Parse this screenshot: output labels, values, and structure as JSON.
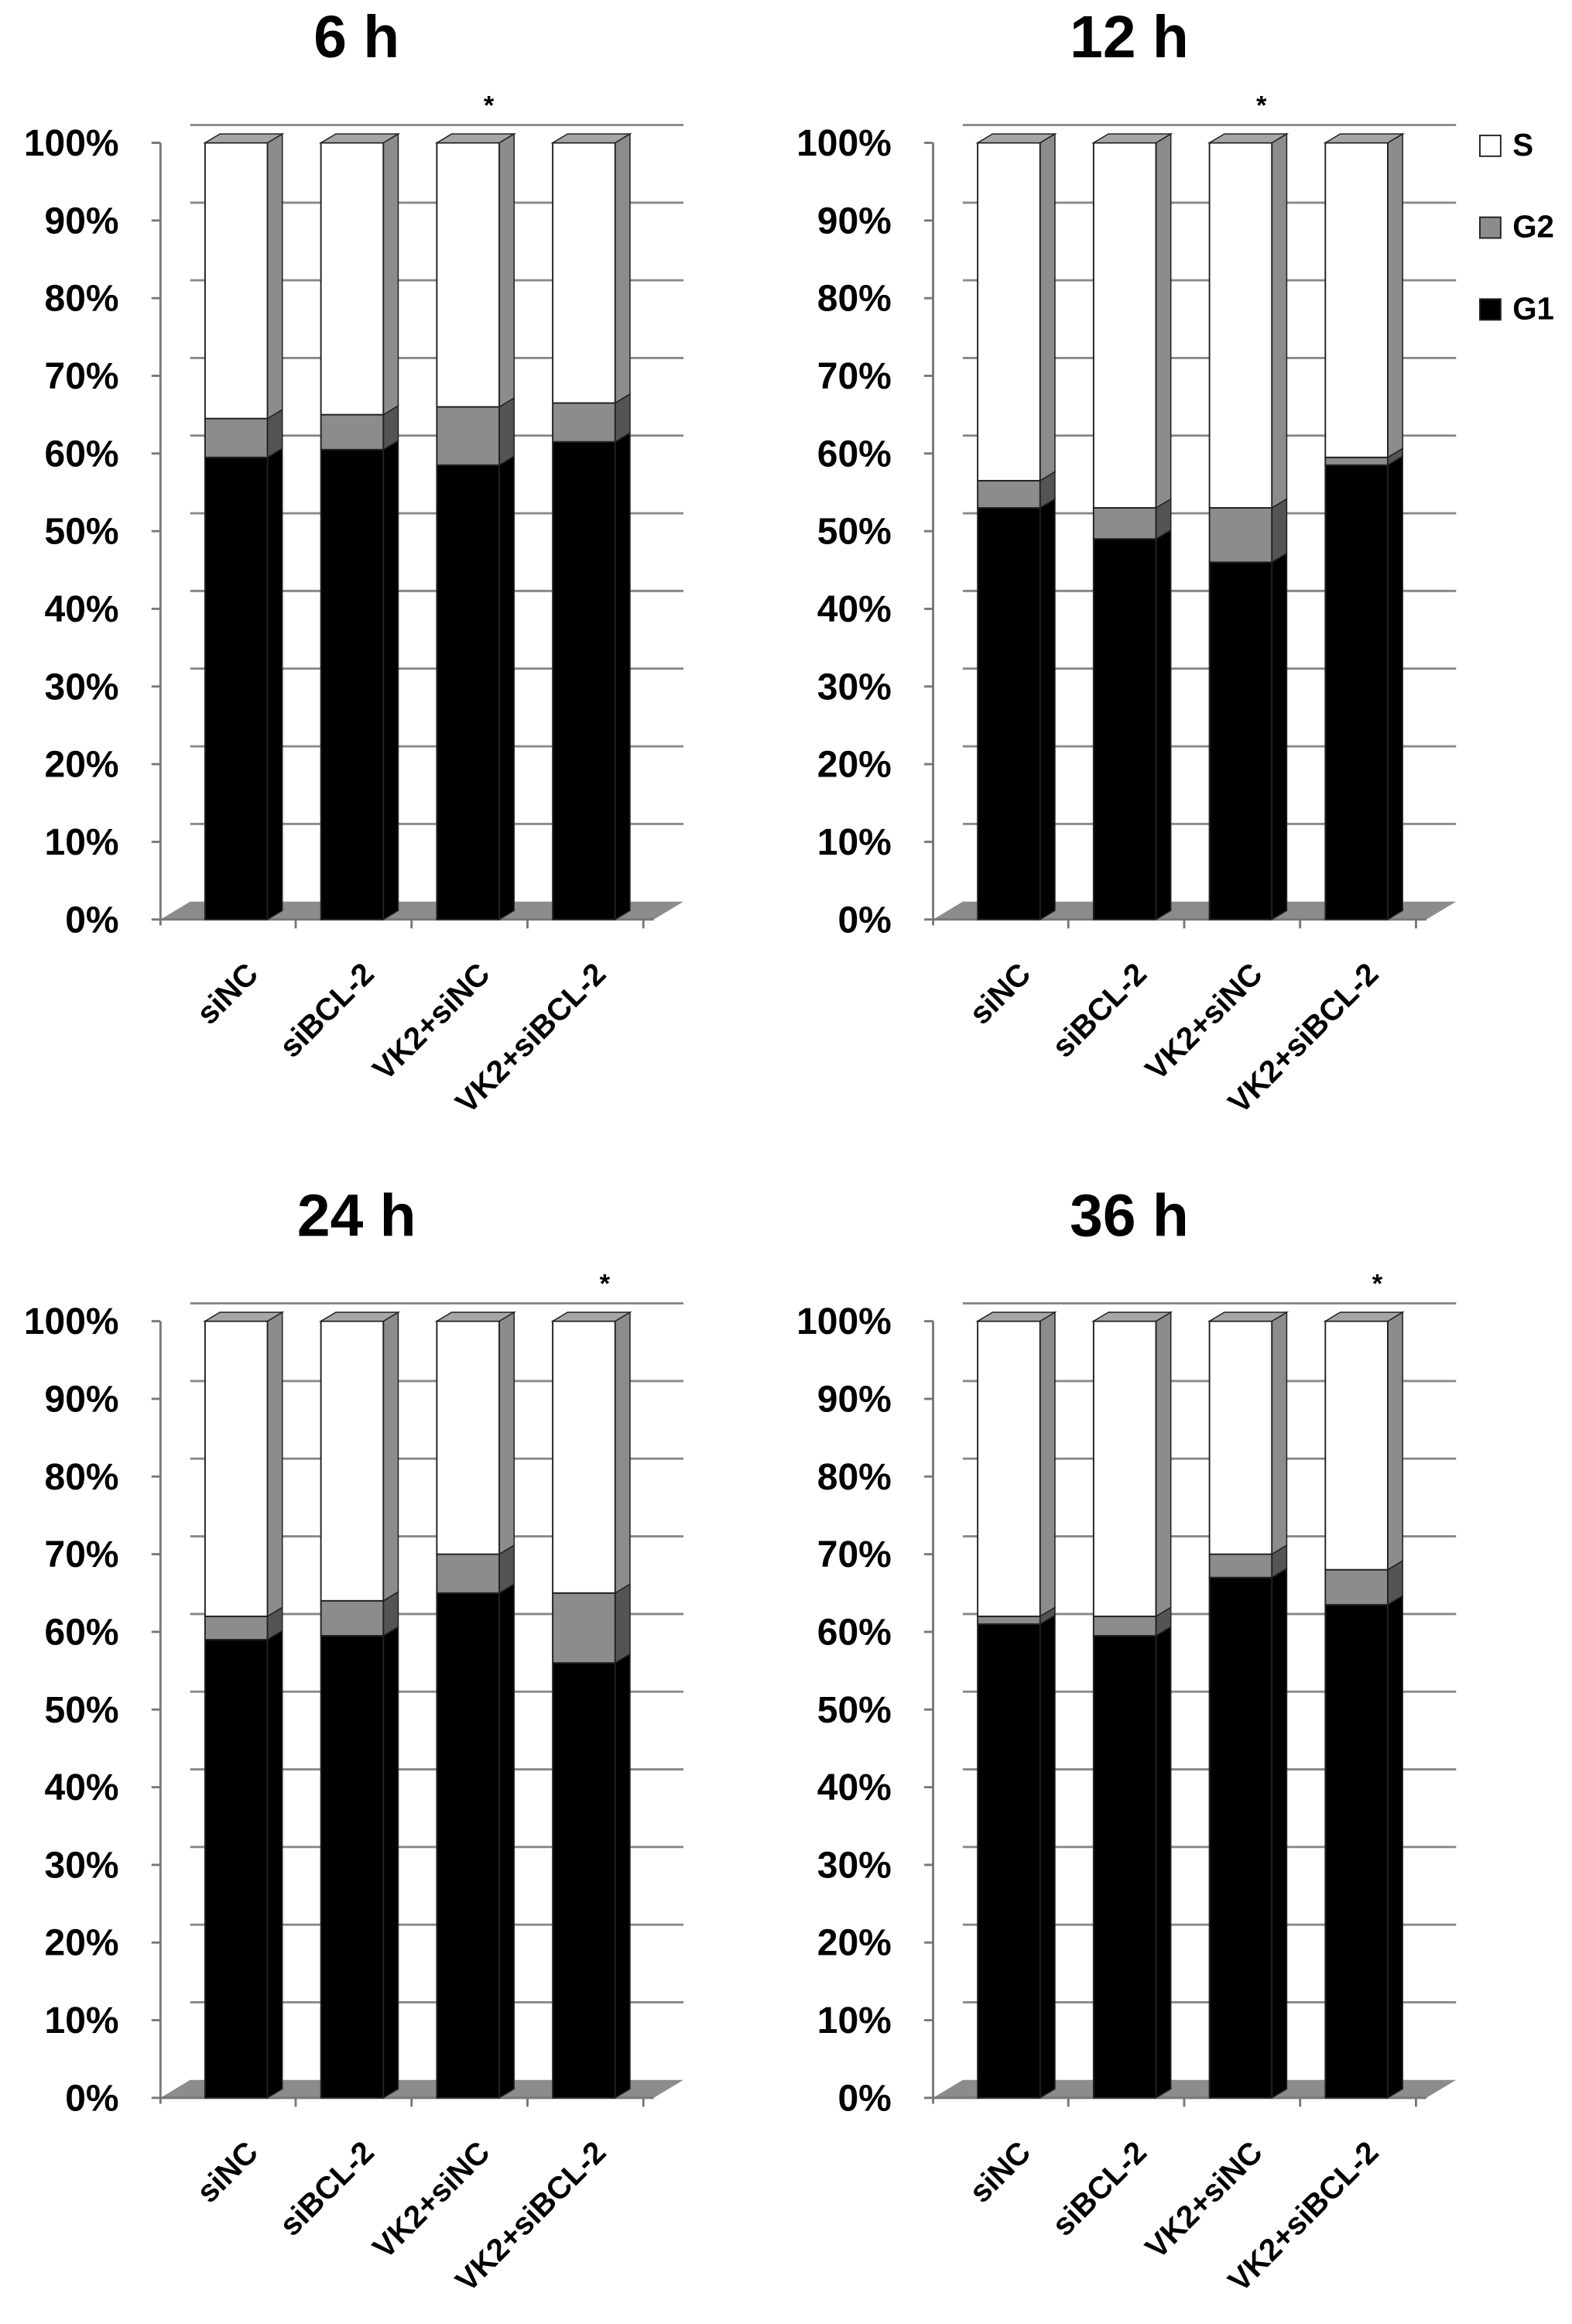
{
  "chart_data": [
    {
      "type": "bar",
      "stacked": true,
      "title": "6 h",
      "categories": [
        "siNC",
        "siBCL-2",
        "VK2+siNC",
        "VK2+siBCL-2"
      ],
      "series": [
        {
          "name": "S",
          "color": "#ffffff",
          "values": [
            35.5,
            35,
            34,
            33.5
          ]
        },
        {
          "name": "G2",
          "color": "#8c8c8c",
          "values": [
            5,
            4.5,
            7.5,
            5
          ]
        },
        {
          "name": "G1",
          "color": "#000000",
          "values": [
            59.5,
            60.5,
            58.5,
            61.5
          ]
        }
      ],
      "ylim": [
        0,
        100
      ],
      "yticks": [
        {
          "value": 0,
          "label": "0%"
        },
        {
          "value": 10,
          "label": "10%"
        },
        {
          "value": 20,
          "label": "20%"
        },
        {
          "value": 30,
          "label": "30%"
        },
        {
          "value": 40,
          "label": "40%"
        },
        {
          "value": 50,
          "label": "50%"
        },
        {
          "value": 60,
          "label": "60%"
        },
        {
          "value": 70,
          "label": "70%"
        },
        {
          "value": 80,
          "label": "80%"
        },
        {
          "value": 90,
          "label": "90%"
        },
        {
          "value": 100,
          "label": "100%"
        }
      ],
      "grid": true,
      "annotations": [
        {
          "text": "*",
          "category": "VK2+siNC"
        }
      ]
    },
    {
      "type": "bar",
      "stacked": true,
      "title": "12 h",
      "categories": [
        "siNC",
        "siBCL-2",
        "VK2+siNC",
        "VK2+siBCL-2"
      ],
      "series": [
        {
          "color": "#ffffff",
          "values": [
            43.5,
            47,
            47,
            40.5
          ]
        },
        {
          "color": "#8c8c8c",
          "values": [
            3.5,
            4,
            7,
            1
          ]
        },
        {
          "color": "#000000",
          "values": [
            53,
            49,
            46,
            58.5
          ]
        }
      ],
      "ylim": [
        0,
        100
      ],
      "yticks": [
        {
          "value": 0,
          "label": "0%"
        },
        {
          "value": 10,
          "label": "10%"
        },
        {
          "value": 20,
          "label": "20%"
        },
        {
          "value": 30,
          "label": "30%"
        },
        {
          "value": 40,
          "label": "40%"
        },
        {
          "value": 50,
          "label": "50%"
        },
        {
          "value": 60,
          "label": "60%"
        },
        {
          "value": 70,
          "label": "70%"
        },
        {
          "value": 80,
          "label": "80%"
        },
        {
          "value": 90,
          "label": "90%"
        },
        {
          "value": 100,
          "label": "100%"
        }
      ],
      "grid": true,
      "annotations": [
        {
          "text": "*",
          "category": "VK2+siNC"
        }
      ],
      "legend": "upper right",
      "legend_series": [
        "S",
        "G2",
        "G1"
      ]
    },
    {
      "type": "bar",
      "stacked": true,
      "title": "24 h",
      "categories": [
        "siNC",
        "siBCL-2",
        "VK2+siNC",
        "VK2+siBCL-2"
      ],
      "series": [
        {
          "color": "#ffffff",
          "values": [
            38,
            36,
            30,
            35
          ]
        },
        {
          "color": "#8c8c8c",
          "values": [
            3,
            4.5,
            5,
            9
          ]
        },
        {
          "color": "#000000",
          "values": [
            59,
            59.5,
            65,
            56
          ]
        }
      ],
      "ylim": [
        0,
        100
      ],
      "yticks": [
        {
          "value": 0,
          "label": "0%"
        },
        {
          "value": 10,
          "label": "10%"
        },
        {
          "value": 20,
          "label": "20%"
        },
        {
          "value": 30,
          "label": "30%"
        },
        {
          "value": 40,
          "label": "40%"
        },
        {
          "value": 50,
          "label": "50%"
        },
        {
          "value": 60,
          "label": "60%"
        },
        {
          "value": 70,
          "label": "70%"
        },
        {
          "value": 80,
          "label": "80%"
        },
        {
          "value": 90,
          "label": "90%"
        },
        {
          "value": 100,
          "label": "100%"
        }
      ],
      "grid": true,
      "annotations": [
        {
          "text": "*",
          "category": "VK2+siBCL-2"
        }
      ]
    },
    {
      "type": "bar",
      "stacked": true,
      "title": "36 h",
      "categories": [
        "siNC",
        "siBCL-2",
        "VK2+siNC",
        "VK2+siBCL-2"
      ],
      "series": [
        {
          "color": "#ffffff",
          "values": [
            38,
            38,
            30,
            32
          ]
        },
        {
          "color": "#8c8c8c",
          "values": [
            1,
            2.5,
            3,
            4.5
          ]
        },
        {
          "color": "#000000",
          "values": [
            61,
            59.5,
            67,
            63.5
          ]
        }
      ],
      "ylim": [
        0,
        100
      ],
      "yticks": [
        {
          "value": 0,
          "label": "0%"
        },
        {
          "value": 10,
          "label": "10%"
        },
        {
          "value": 20,
          "label": "20%"
        },
        {
          "value": 30,
          "label": "30%"
        },
        {
          "value": 40,
          "label": "40%"
        },
        {
          "value": 50,
          "label": "50%"
        },
        {
          "value": 60,
          "label": "60%"
        },
        {
          "value": 70,
          "label": "70%"
        },
        {
          "value": 80,
          "label": "80%"
        },
        {
          "value": 90,
          "label": "90%"
        },
        {
          "value": 100,
          "label": "100%"
        }
      ],
      "grid": true,
      "annotations": [
        {
          "text": "*",
          "category": "VK2+siBCL-2"
        }
      ]
    }
  ]
}
